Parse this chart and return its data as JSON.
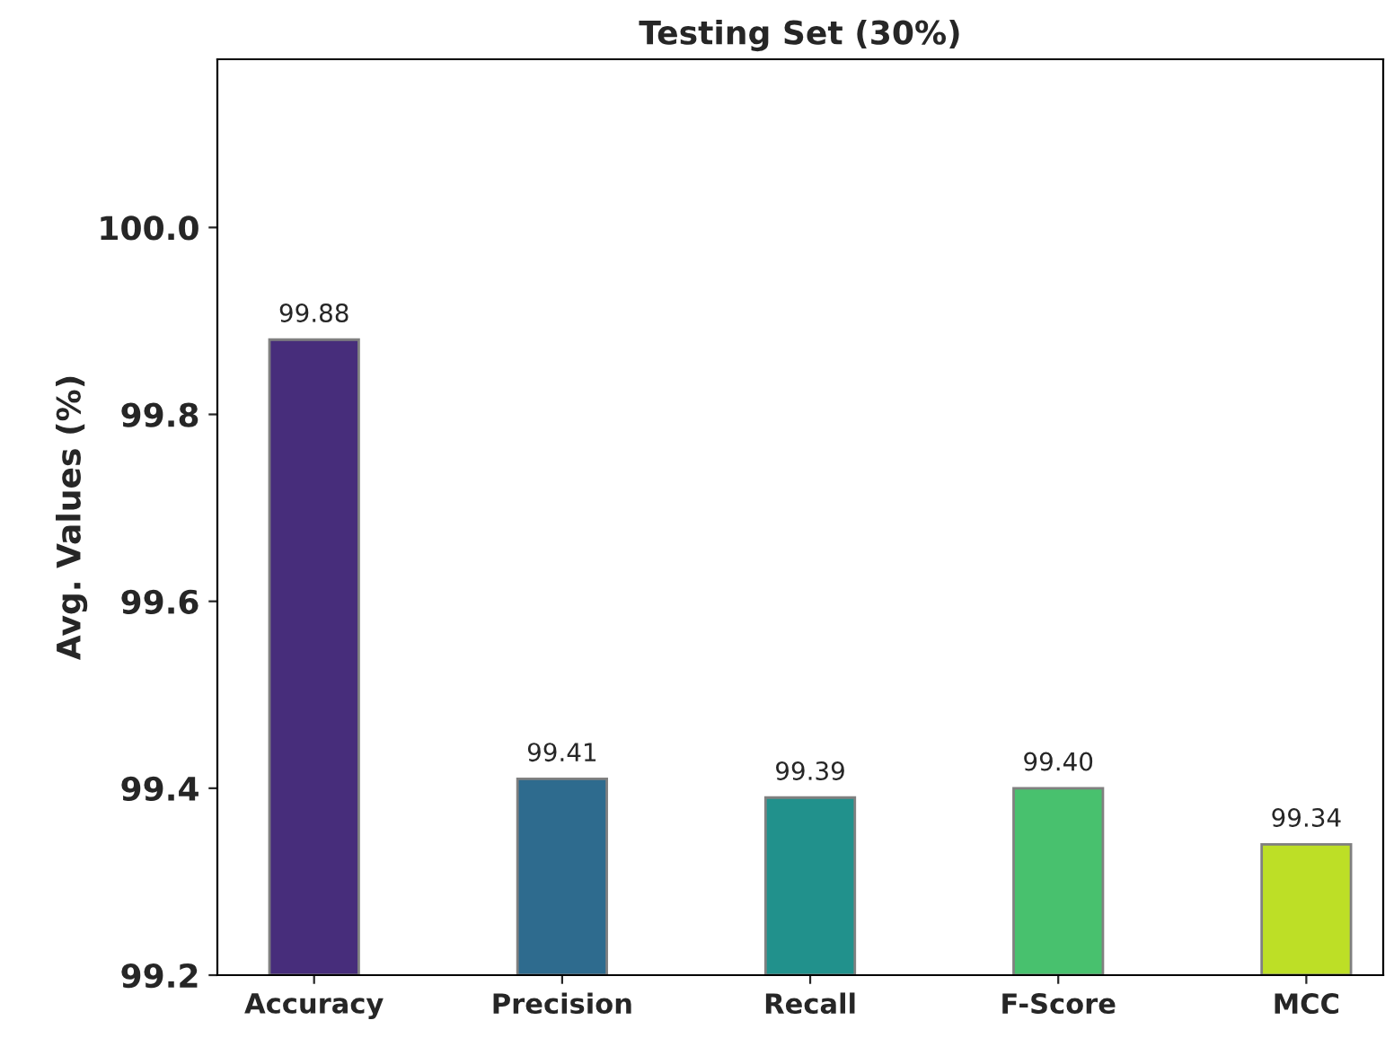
{
  "chart_data": {
    "type": "bar",
    "title": "Testing Set (30%)",
    "ylabel": "Avg. Values (%)",
    "categories": [
      "Accuracy",
      "Precision",
      "Recall",
      "F-Score",
      "MCC"
    ],
    "values": [
      99.88,
      99.41,
      99.39,
      99.4,
      99.34
    ],
    "colors": [
      "#472d7b",
      "#2e6b8e",
      "#21918c",
      "#48c16e",
      "#bddf26"
    ],
    "ylim": [
      99.2,
      100.18
    ],
    "yticks": [
      {
        "value": 99.2,
        "label": "99.2"
      },
      {
        "value": 99.4,
        "label": "99.4"
      },
      {
        "value": 99.6,
        "label": "99.6"
      },
      {
        "value": 99.8,
        "label": "99.8"
      },
      {
        "value": 100.0,
        "label": "100.0"
      }
    ],
    "value_labels": [
      "99.88",
      "99.41",
      "99.39",
      "99.40",
      "99.34"
    ],
    "grid": false,
    "legend": false
  }
}
